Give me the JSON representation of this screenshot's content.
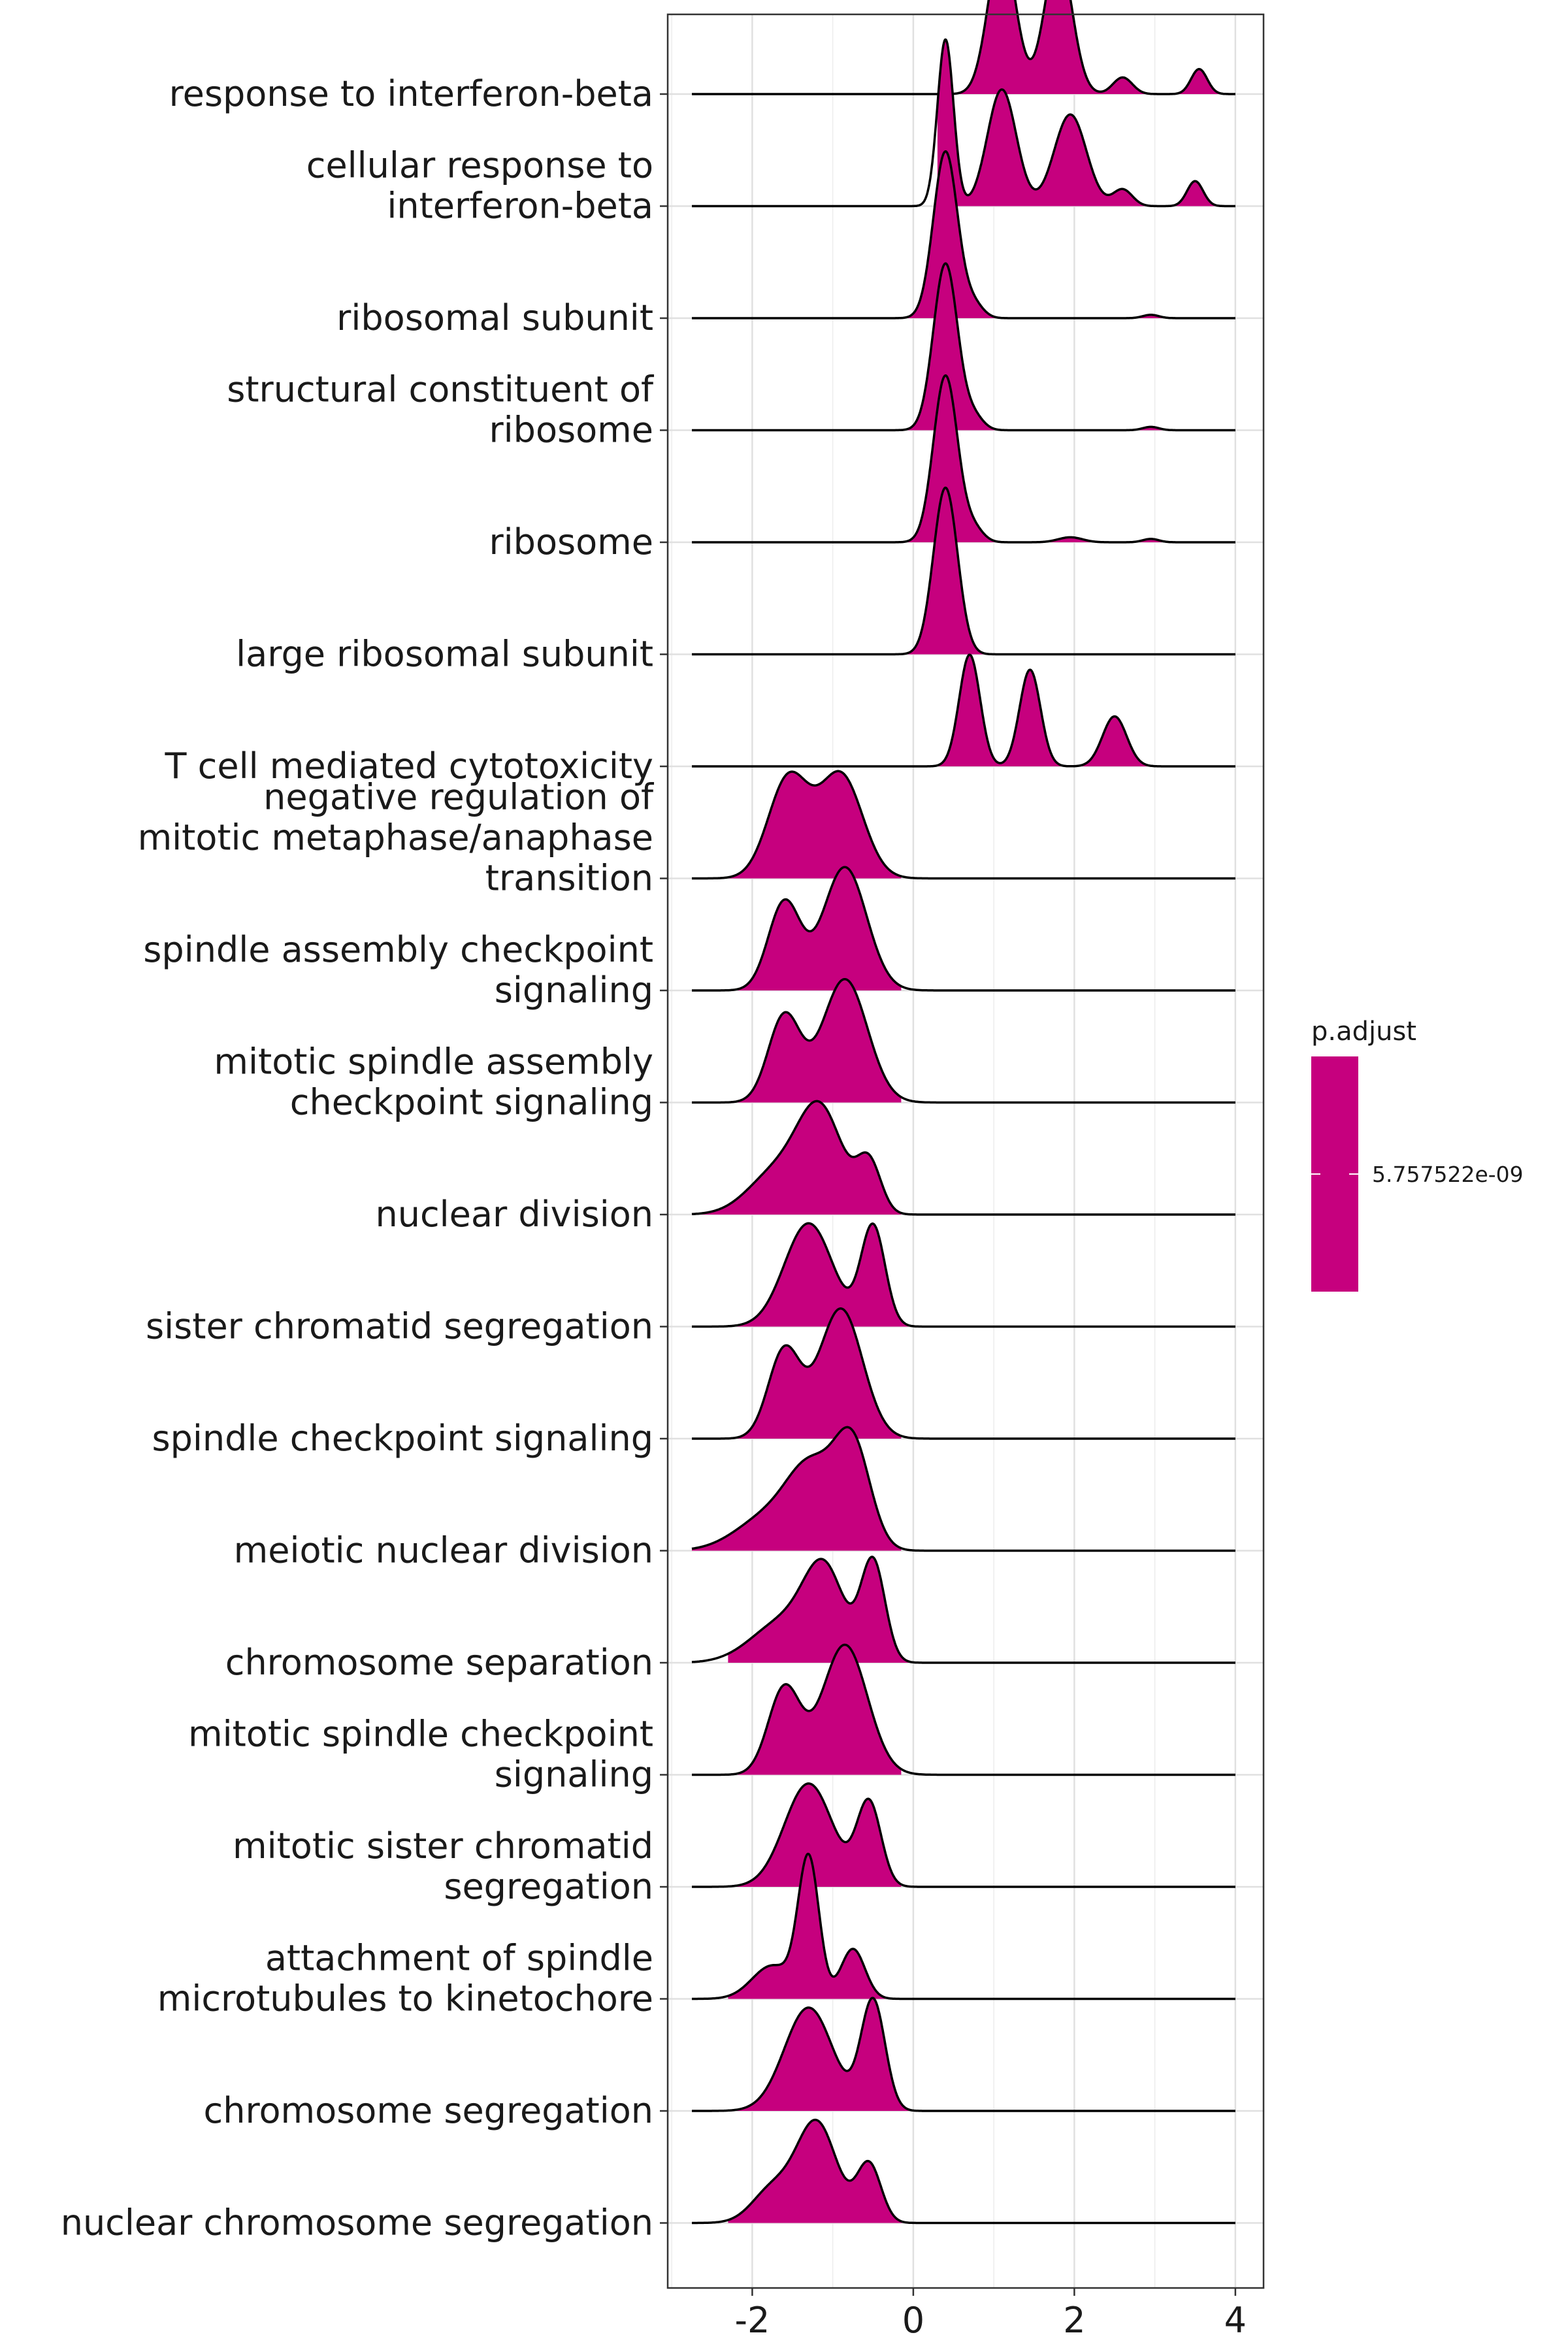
{
  "chart_data": {
    "type": "ridgeline",
    "xlim": [
      -3.05,
      4.35
    ],
    "x_ticks": [
      -2,
      0,
      2,
      4
    ],
    "x_tick_labels": [
      "-2",
      "0",
      "2",
      "4"
    ],
    "x_extent": [
      -2.75,
      4.0
    ],
    "grid": true,
    "fill_color": "#C6007E",
    "line_color": "#000000",
    "legend": {
      "title": "p.adjust",
      "label": "5.757522e-09",
      "placement": "right",
      "color": "#C6007E"
    },
    "categories": [
      {
        "label": [
          "response to interferon-beta"
        ],
        "peaks": [
          [
            1.1,
            0.17,
            0.9
          ],
          [
            1.8,
            0.17,
            0.85
          ],
          [
            2.6,
            0.12,
            0.1
          ],
          [
            3.55,
            0.1,
            0.15
          ]
        ],
        "range": [
          0.5,
          3.9
        ]
      },
      {
        "label": [
          "cellular response to",
          "interferon-beta"
        ],
        "peaks": [
          [
            0.4,
            0.1,
            1.0
          ],
          [
            1.1,
            0.18,
            0.7
          ],
          [
            1.95,
            0.2,
            0.55
          ],
          [
            2.6,
            0.12,
            0.1
          ],
          [
            3.5,
            0.1,
            0.15
          ]
        ],
        "range": [
          0.3,
          3.9
        ]
      },
      {
        "label": [
          "ribosomal subunit"
        ],
        "peaks": [
          [
            0.4,
            0.15,
            1.0
          ],
          [
            0.75,
            0.12,
            0.08
          ],
          [
            2.95,
            0.1,
            0.02
          ]
        ],
        "range": [
          -0.15,
          3.3
        ]
      },
      {
        "label": [
          "structural constituent of",
          "ribosome"
        ],
        "peaks": [
          [
            0.4,
            0.15,
            1.0
          ],
          [
            0.75,
            0.12,
            0.08
          ],
          [
            2.95,
            0.1,
            0.02
          ]
        ],
        "range": [
          -0.15,
          3.3
        ]
      },
      {
        "label": [
          "ribosome"
        ],
        "peaks": [
          [
            0.4,
            0.15,
            1.0
          ],
          [
            0.75,
            0.12,
            0.08
          ],
          [
            1.95,
            0.15,
            0.03
          ],
          [
            2.95,
            0.1,
            0.02
          ]
        ],
        "range": [
          -0.15,
          3.3
        ]
      },
      {
        "label": [
          "large ribosomal subunit"
        ],
        "peaks": [
          [
            0.4,
            0.15,
            1.0
          ]
        ],
        "range": [
          -0.15,
          1.1
        ]
      },
      {
        "label": [
          "T cell mediated cytotoxicity"
        ],
        "peaks": [
          [
            0.7,
            0.13,
            0.67
          ],
          [
            1.45,
            0.13,
            0.58
          ],
          [
            2.5,
            0.15,
            0.3
          ]
        ],
        "range": [
          0.2,
          2.95
        ]
      },
      {
        "label": [
          "negative regulation of",
          "mitotic metaphase/anaphase",
          "transition"
        ],
        "peaks": [
          [
            -1.55,
            0.25,
            0.6
          ],
          [
            -0.9,
            0.27,
            0.62
          ]
        ],
        "range": [
          -2.3,
          -0.15
        ]
      },
      {
        "label": [
          "spindle assembly checkpoint",
          "signaling"
        ],
        "peaks": [
          [
            -1.6,
            0.2,
            0.53
          ],
          [
            -0.85,
            0.27,
            0.74
          ]
        ],
        "range": [
          -2.3,
          -0.15
        ]
      },
      {
        "label": [
          "mitotic spindle assembly",
          "checkpoint signaling"
        ],
        "peaks": [
          [
            -1.6,
            0.2,
            0.52
          ],
          [
            -0.85,
            0.28,
            0.74
          ]
        ],
        "range": [
          -2.3,
          -0.15
        ]
      },
      {
        "label": [
          "nuclear division"
        ],
        "peaks": [
          [
            -1.7,
            0.35,
            0.25
          ],
          [
            -1.15,
            0.28,
            0.6
          ],
          [
            -0.55,
            0.15,
            0.3
          ]
        ],
        "range": [
          -2.75,
          -0.15
        ]
      },
      {
        "label": [
          "sister chromatid segregation"
        ],
        "peaks": [
          [
            -1.3,
            0.3,
            0.62
          ],
          [
            -0.5,
            0.15,
            0.6
          ]
        ],
        "range": [
          -2.3,
          0.0
        ]
      },
      {
        "label": [
          "spindle checkpoint signaling"
        ],
        "peaks": [
          [
            -1.6,
            0.2,
            0.53
          ],
          [
            -0.9,
            0.27,
            0.78
          ]
        ],
        "range": [
          -2.3,
          -0.15
        ]
      },
      {
        "label": [
          "meiotic nuclear division"
        ],
        "peaks": [
          [
            -1.8,
            0.4,
            0.2
          ],
          [
            -1.25,
            0.3,
            0.45
          ],
          [
            -0.75,
            0.22,
            0.6
          ]
        ],
        "range": [
          -2.75,
          -0.15
        ]
      },
      {
        "label": [
          "chromosome separation"
        ],
        "peaks": [
          [
            -1.6,
            0.4,
            0.25
          ],
          [
            -1.1,
            0.25,
            0.5
          ],
          [
            -0.5,
            0.15,
            0.6
          ]
        ],
        "range": [
          -2.3,
          0.0
        ]
      },
      {
        "label": [
          "mitotic spindle checkpoint",
          "signaling"
        ],
        "peaks": [
          [
            -1.6,
            0.2,
            0.52
          ],
          [
            -0.85,
            0.28,
            0.78
          ]
        ],
        "range": [
          -2.3,
          -0.15
        ]
      },
      {
        "label": [
          "mitotic sister chromatid",
          "segregation"
        ],
        "peaks": [
          [
            -1.3,
            0.3,
            0.62
          ],
          [
            -0.55,
            0.15,
            0.5
          ]
        ],
        "range": [
          -2.3,
          -0.15
        ]
      },
      {
        "label": [
          "attachment of spindle",
          "microtubules to kinetochore"
        ],
        "peaks": [
          [
            -1.75,
            0.25,
            0.2
          ],
          [
            -1.3,
            0.13,
            0.83
          ],
          [
            -0.75,
            0.15,
            0.3
          ]
        ],
        "range": [
          -2.3,
          -0.15
        ]
      },
      {
        "label": [
          "chromosome segregation"
        ],
        "peaks": [
          [
            -1.3,
            0.3,
            0.62
          ],
          [
            -0.5,
            0.15,
            0.66
          ]
        ],
        "range": [
          -2.3,
          0.0
        ]
      },
      {
        "label": [
          "nuclear chromosome segregation"
        ],
        "peaks": [
          [
            -1.75,
            0.25,
            0.2
          ],
          [
            -1.2,
            0.25,
            0.6
          ],
          [
            -0.55,
            0.15,
            0.35
          ]
        ],
        "range": [
          -2.3,
          0.0
        ]
      }
    ]
  }
}
